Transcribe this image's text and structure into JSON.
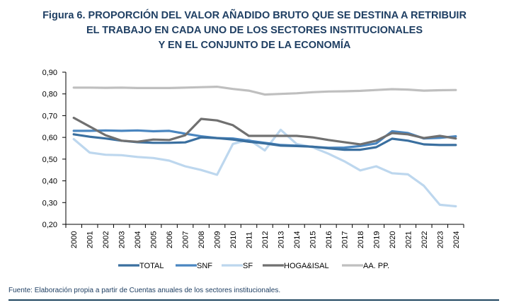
{
  "title_lines": [
    "Figura 6. PROPORCIÓN DEL VALOR AÑADIDO BRUTO QUE SE DESTINA A RETRIBUIR",
    "EL TRABAJO EN CADA UNO DE LOS SECTORES INSTITUCIONALES",
    "Y EN EL CONJUNTO DE LA ECONOMÍA"
  ],
  "footer": "Fuente: Elaboración propia a partir de Cuentas anuales de los sectores institucionales.",
  "chart_data": {
    "type": "line",
    "title": "Figura 6. PROPORCIÓN DEL VALOR AÑADIDO BRUTO QUE SE DESTINA A RETRIBUIR EL TRABAJO EN CADA UNO DE LOS SECTORES INSTITUCIONALES Y EN EL CONJUNTO DE LA ECONOMÍA",
    "xlabel": "",
    "ylabel": "",
    "ylim": [
      0.2,
      0.9
    ],
    "yticks": [
      0.2,
      0.3,
      0.4,
      0.5,
      0.6,
      0.7,
      0.8,
      0.9
    ],
    "ytick_labels": [
      "0,20",
      "0,30",
      "0,40",
      "0,50",
      "0,60",
      "0,70",
      "0,80",
      "0,90"
    ],
    "grid": false,
    "legend_position": "bottom",
    "x": [
      "2000",
      "2001",
      "2002",
      "2003",
      "2004",
      "2005",
      "2006",
      "2007",
      "2008",
      "2009",
      "2010",
      "2011",
      "2012",
      "2013",
      "2014",
      "2015",
      "2016",
      "2017",
      "2018",
      "2019",
      "2020",
      "2021",
      "2022",
      "2023",
      "2024"
    ],
    "series": [
      {
        "name": "TOTAL",
        "color": "#3a6f9f",
        "values": [
          0.614,
          0.603,
          0.595,
          0.585,
          0.578,
          0.575,
          0.575,
          0.577,
          0.6,
          0.597,
          0.59,
          0.58,
          0.572,
          0.562,
          0.56,
          0.557,
          0.55,
          0.543,
          0.543,
          0.555,
          0.594,
          0.585,
          0.568,
          0.565,
          0.565
        ]
      },
      {
        "name": "SNF",
        "color": "#4a86c0",
        "values": [
          0.63,
          0.63,
          0.632,
          0.63,
          0.632,
          0.628,
          0.63,
          0.617,
          0.605,
          0.597,
          0.595,
          0.585,
          0.575,
          0.565,
          0.562,
          0.557,
          0.552,
          0.553,
          0.56,
          0.572,
          0.628,
          0.62,
          0.595,
          0.598,
          0.605
        ]
      },
      {
        "name": "SF",
        "color": "#bdd7ee",
        "values": [
          0.592,
          0.53,
          0.52,
          0.518,
          0.51,
          0.505,
          0.493,
          0.467,
          0.45,
          0.428,
          0.57,
          0.59,
          0.54,
          0.635,
          0.57,
          0.555,
          0.525,
          0.49,
          0.448,
          0.467,
          0.435,
          0.43,
          0.377,
          0.29,
          0.283
        ]
      },
      {
        "name": "HOGA&ISAL",
        "color": "#707070",
        "values": [
          0.69,
          0.65,
          0.61,
          0.585,
          0.58,
          0.59,
          0.588,
          0.61,
          0.685,
          0.678,
          0.656,
          0.607,
          0.607,
          0.607,
          0.607,
          0.6,
          0.588,
          0.578,
          0.568,
          0.585,
          0.62,
          0.614,
          0.597,
          0.607,
          0.595
        ]
      },
      {
        "name": "AA. PP.",
        "color": "#bfbfbf",
        "values": [
          0.829,
          0.829,
          0.828,
          0.829,
          0.827,
          0.827,
          0.827,
          0.829,
          0.831,
          0.833,
          0.823,
          0.815,
          0.797,
          0.8,
          0.803,
          0.808,
          0.811,
          0.812,
          0.814,
          0.818,
          0.822,
          0.82,
          0.815,
          0.817,
          0.818
        ]
      }
    ]
  }
}
